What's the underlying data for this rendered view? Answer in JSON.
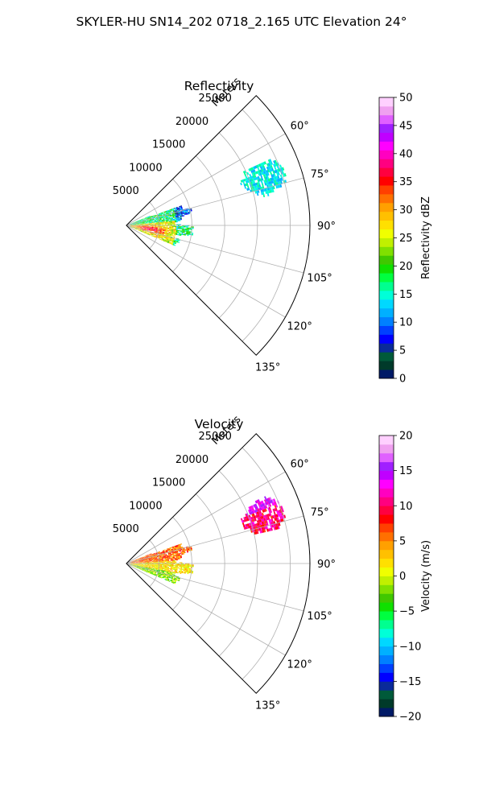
{
  "figure": {
    "title": "SKYLER-HU  SN14_202  0718_2.165 UTC Elevation 24°"
  },
  "chart_data": [
    {
      "type": "heatmap",
      "subtype": "polar-sector",
      "title": "Reflectivity",
      "radial_label": "Meters",
      "radial_ticks": [
        "5000",
        "10000",
        "15000",
        "20000",
        "25000"
      ],
      "radial_tick_values": [
        5000,
        10000,
        15000,
        20000,
        25000
      ],
      "r_max": 28000,
      "theta_range_deg": [
        45,
        135
      ],
      "angle_ticks": [
        "60°",
        "75°",
        "90°",
        "105°",
        "120°",
        "135°"
      ],
      "angle_tick_values": [
        60,
        75,
        90,
        105,
        120,
        135
      ],
      "grid": true,
      "colorbar": {
        "label": "Reflectivity dBZ",
        "vmin": 0,
        "vmax": 50,
        "ticks": [
          "0",
          "5",
          "10",
          "15",
          "20",
          "25",
          "30",
          "35",
          "40",
          "45",
          "50"
        ],
        "tick_values": [
          0,
          5,
          10,
          15,
          20,
          25,
          30,
          35,
          40,
          45,
          50
        ],
        "colors": [
          "#001a66",
          "#003a2a",
          "#005a3a",
          "#0a2a9a",
          "#0000ff",
          "#0040ff",
          "#0080ff",
          "#00b0ff",
          "#00d8ff",
          "#00ffd8",
          "#00ff90",
          "#00ff40",
          "#10e000",
          "#40c800",
          "#80e000",
          "#c0f000",
          "#f0ff00",
          "#ffe000",
          "#ffc000",
          "#ffa000",
          "#ff7000",
          "#ff4000",
          "#ff0000",
          "#ff0040",
          "#ff0080",
          "#ff00c0",
          "#ff00ff",
          "#c000ff",
          "#a020ff",
          "#e060ff",
          "#f0a0f0",
          "#ffd0ff"
        ]
      },
      "echoes": [
        {
          "region": "near",
          "range_m": [
            0,
            10000
          ],
          "azimuth_deg": [
            70,
            110
          ],
          "dominant_dbz": [
            15,
            40
          ]
        },
        {
          "region": "far",
          "range_m": [
            18000,
            26000
          ],
          "azimuth_deg": [
            63,
            78
          ],
          "dominant_dbz": [
            12,
            18
          ]
        }
      ]
    },
    {
      "type": "heatmap",
      "subtype": "polar-sector",
      "title": "Velocity",
      "radial_label": "Meters",
      "radial_ticks": [
        "5000",
        "10000",
        "15000",
        "20000",
        "25000"
      ],
      "radial_tick_values": [
        5000,
        10000,
        15000,
        20000,
        25000
      ],
      "r_max": 28000,
      "theta_range_deg": [
        45,
        135
      ],
      "angle_ticks": [
        "60°",
        "75°",
        "90°",
        "105°",
        "120°",
        "135°"
      ],
      "angle_tick_values": [
        60,
        75,
        90,
        105,
        120,
        135
      ],
      "grid": true,
      "colorbar": {
        "label": "Velocity (m/s)",
        "vmin": -20,
        "vmax": 20,
        "ticks": [
          "−20",
          "−15",
          "−10",
          "−5",
          "0",
          "5",
          "10",
          "15",
          "20"
        ],
        "tick_values": [
          -20,
          -15,
          -10,
          -5,
          0,
          5,
          10,
          15,
          20
        ],
        "colors": [
          "#001a66",
          "#003a2a",
          "#005a3a",
          "#0a2a9a",
          "#0000ff",
          "#0040ff",
          "#0080ff",
          "#00b0ff",
          "#00d8ff",
          "#00ffd8",
          "#00ff90",
          "#00ff40",
          "#10e000",
          "#40c800",
          "#80e000",
          "#c0f000",
          "#f0ff00",
          "#ffe000",
          "#ffc000",
          "#ffa000",
          "#ff7000",
          "#ff4000",
          "#ff0000",
          "#ff0040",
          "#ff0080",
          "#ff00c0",
          "#ff00ff",
          "#c000ff",
          "#a020ff",
          "#e060ff",
          "#f0a0f0",
          "#ffd0ff"
        ]
      },
      "echoes": [
        {
          "region": "near",
          "range_m": [
            0,
            10000
          ],
          "azimuth_deg": [
            70,
            110
          ],
          "dominant_ms": [
            -5,
            10
          ]
        },
        {
          "region": "far",
          "range_m": [
            18000,
            26000
          ],
          "azimuth_deg": [
            63,
            78
          ],
          "dominant_ms": [
            8,
            16
          ]
        }
      ]
    }
  ]
}
